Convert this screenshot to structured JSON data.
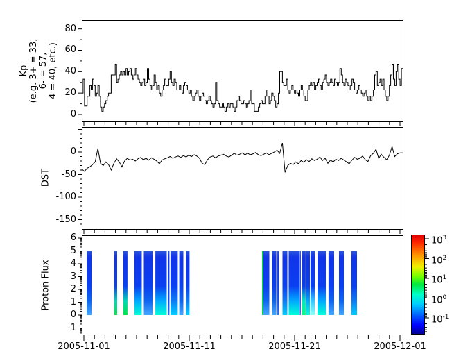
{
  "figure": {
    "background": "#ffffff",
    "line_color": "#000000"
  },
  "xaxis": {
    "start_date": "2005-11-01",
    "tick_labels": [
      "2005-11-01",
      "2005-11-11",
      "2005-11-21",
      "2005-12-01"
    ],
    "tick_days": [
      0,
      10,
      20,
      30
    ],
    "minor_interval_days": 1
  },
  "chart_data": [
    {
      "type": "line",
      "name": "kp",
      "ylabel": "Kp\n(e.g. 3+ = 33,\n6- = 57,\n4 = 40, etc.)",
      "yticks": [
        80,
        60,
        40,
        20,
        0
      ],
      "ytick_minor_step": 10,
      "ylim": [
        -6,
        88
      ],
      "line_style": "steps",
      "step_hours": 3,
      "values": [
        20,
        33,
        8,
        8,
        17,
        17,
        27,
        23,
        33,
        27,
        17,
        20,
        27,
        17,
        7,
        3,
        7,
        10,
        13,
        17,
        20,
        20,
        37,
        37,
        37,
        47,
        30,
        33,
        37,
        40,
        37,
        40,
        37,
        43,
        37,
        40,
        43,
        37,
        33,
        37,
        43,
        37,
        33,
        30,
        27,
        30,
        33,
        27,
        30,
        43,
        33,
        27,
        23,
        27,
        37,
        30,
        23,
        27,
        20,
        17,
        23,
        27,
        33,
        27,
        27,
        33,
        40,
        30,
        27,
        33,
        30,
        23,
        23,
        27,
        23,
        20,
        27,
        30,
        27,
        23,
        20,
        23,
        17,
        13,
        17,
        20,
        23,
        17,
        13,
        17,
        20,
        17,
        13,
        10,
        13,
        17,
        13,
        10,
        7,
        10,
        30,
        13,
        10,
        7,
        7,
        10,
        7,
        3,
        7,
        10,
        7,
        10,
        10,
        7,
        3,
        7,
        13,
        17,
        13,
        10,
        10,
        13,
        10,
        7,
        10,
        13,
        23,
        10,
        10,
        3,
        3,
        3,
        7,
        10,
        13,
        10,
        10,
        17,
        23,
        17,
        10,
        13,
        20,
        17,
        13,
        7,
        10,
        20,
        40,
        40,
        30,
        27,
        27,
        33,
        23,
        20,
        23,
        27,
        23,
        20,
        23,
        20,
        17,
        23,
        27,
        23,
        17,
        13,
        13,
        23,
        27,
        30,
        27,
        30,
        23,
        27,
        30,
        33,
        27,
        23,
        30,
        33,
        37,
        30,
        27,
        30,
        33,
        30,
        27,
        33,
        30,
        27,
        30,
        43,
        37,
        30,
        27,
        33,
        30,
        27,
        23,
        27,
        33,
        30,
        23,
        20,
        23,
        27,
        23,
        20,
        17,
        20,
        23,
        17,
        13,
        17,
        13,
        17,
        23,
        37,
        40,
        27,
        30,
        33,
        27,
        33,
        23,
        17,
        13,
        17,
        27,
        37,
        47,
        33,
        27,
        40,
        47,
        33,
        27,
        43
      ]
    },
    {
      "type": "line",
      "name": "dst",
      "ylabel": "DST",
      "yticks": [
        0,
        -50,
        -100,
        -150
      ],
      "ytick_minor_step": 10,
      "ylim": [
        -163,
        53
      ],
      "line_style": "linear",
      "step_hours": 6,
      "values": [
        -38,
        -43,
        -36,
        -33,
        -28,
        -22,
        8,
        -25,
        -30,
        -22,
        -28,
        -40,
        -25,
        -15,
        -22,
        -33,
        -20,
        -14,
        -18,
        -16,
        -20,
        -15,
        -12,
        -17,
        -14,
        -18,
        -13,
        -16,
        -20,
        -26,
        -18,
        -15,
        -13,
        -10,
        -14,
        -11,
        -9,
        -12,
        -8,
        -11,
        -7,
        -10,
        -6,
        -9,
        -14,
        -25,
        -28,
        -17,
        -11,
        -9,
        -13,
        -9,
        -7,
        -5,
        -9,
        -11,
        -7,
        -3,
        -7,
        -5,
        -2,
        -6,
        -3,
        -6,
        -4,
        -1,
        -6,
        -8,
        -5,
        -2,
        -6,
        -3,
        0,
        4,
        -3,
        20,
        -45,
        -30,
        -25,
        -28,
        -22,
        -26,
        -19,
        -23,
        -17,
        -21,
        -15,
        -19,
        -16,
        -11,
        -19,
        -14,
        -25,
        -18,
        -22,
        -16,
        -19,
        -14,
        -18,
        -22,
        -26,
        -18,
        -12,
        -16,
        -14,
        -9,
        -17,
        -21,
        -8,
        -3,
        6,
        -14,
        -5,
        -12,
        -17,
        -7,
        12,
        -10,
        -4,
        -2
      ]
    },
    {
      "type": "heatmap",
      "name": "proton_flux",
      "ylabel": "Proton Flux",
      "yticks": [
        6,
        5,
        4,
        3,
        2,
        1,
        0,
        -1
      ],
      "ylim": [
        -1.5,
        6.2
      ],
      "bar_value_span": [
        0,
        5
      ],
      "bars": [
        {
          "start_day": 0.26,
          "end_day": 0.72,
          "bottom": "lightblue"
        },
        {
          "start_day": 2.89,
          "end_day": 3.16,
          "bottom": "green"
        },
        {
          "start_day": 3.75,
          "end_day": 4.14,
          "bottom": "green"
        },
        {
          "start_day": 4.8,
          "end_day": 5.49,
          "bottom": "cyan"
        },
        {
          "start_day": 5.69,
          "end_day": 6.51,
          "bottom": "lightblue"
        },
        {
          "start_day": 6.78,
          "end_day": 7.86,
          "bottom": "cyan"
        },
        {
          "start_day": 7.96,
          "end_day": 8.12,
          "bottom": "blue"
        },
        {
          "start_day": 8.22,
          "end_day": 8.91,
          "bottom": "skyblue"
        },
        {
          "start_day": 9.05,
          "end_day": 9.44,
          "bottom": "lightblue"
        },
        {
          "start_day": 9.7,
          "end_day": 10.03,
          "bottom": "skyblue"
        },
        {
          "start_day": 16.91,
          "end_day": 17.6,
          "bottom": "lightblue",
          "green_left_edge": true
        },
        {
          "start_day": 17.86,
          "end_day": 18.26,
          "bottom": "lightblue"
        },
        {
          "start_day": 18.36,
          "end_day": 18.49,
          "bottom": "blue"
        },
        {
          "start_day": 18.85,
          "end_day": 19.31,
          "bottom": "skyblue"
        },
        {
          "start_day": 19.44,
          "end_day": 20.46,
          "bottom": "cyan"
        },
        {
          "start_day": 20.49,
          "end_day": 20.59,
          "bottom": "blue"
        },
        {
          "start_day": 20.72,
          "end_day": 21.05,
          "bottom": "greencyan"
        },
        {
          "start_day": 21.09,
          "end_day": 21.45,
          "bottom": "cyan"
        },
        {
          "start_day": 21.51,
          "end_day": 21.91,
          "bottom": "lightcyan"
        },
        {
          "start_day": 22.17,
          "end_day": 22.96,
          "bottom": "cyan"
        },
        {
          "start_day": 23.22,
          "end_day": 23.75,
          "bottom": "lightblue"
        },
        {
          "start_day": 24.21,
          "end_day": 24.67,
          "bottom": "lightblue"
        },
        {
          "start_day": 25.39,
          "end_day": 25.92,
          "bottom": "skyblue"
        }
      ],
      "palette": {
        "blue": {
          "pre": "#0c4cee",
          "bottom": "#2470fa"
        },
        "skyblue": {
          "pre": "#0d7df2",
          "bottom": "#00cfff"
        },
        "lightblue": {
          "pre": "#0e66f0",
          "bottom": "#44a8ff"
        },
        "cyan": {
          "pre": "#00aaff",
          "bottom": "#00ffd6"
        },
        "lightcyan": {
          "pre": "#38c8ff",
          "bottom": "#90fff2"
        },
        "green": {
          "pre": "#00d8b8",
          "bottom": "#00e448"
        },
        "greencyan": {
          "pre": "#00e8c4",
          "bottom": "#00ff82"
        }
      },
      "colorbar": {
        "scale": "log",
        "colormap": "jet",
        "tick_base": "10",
        "tick_exponents": [
          3,
          2,
          1,
          0,
          -1
        ],
        "range_exponents": [
          -1.8,
          3.2
        ]
      }
    }
  ]
}
